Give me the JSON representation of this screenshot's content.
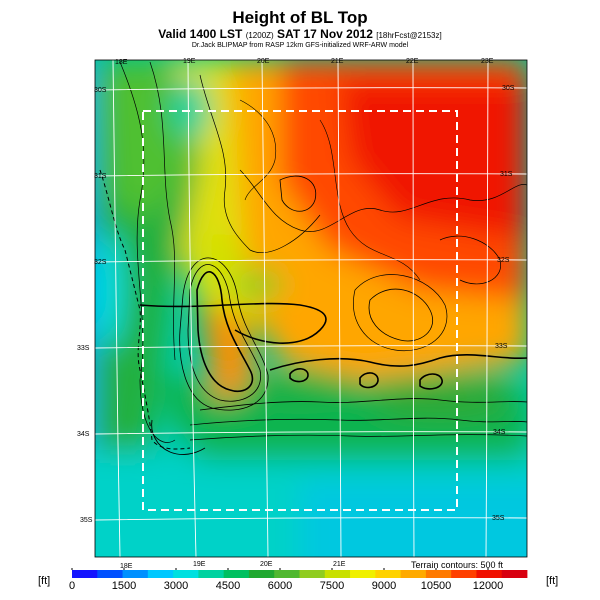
{
  "header": {
    "title": "Height of BL Top",
    "subtitle_main": "Valid 1400 LST",
    "subtitle_code": "(1200Z)",
    "subtitle_date": "SAT 17 Nov 2012",
    "subtitle_fcst": "[18hrFcst@2153z]",
    "credit": "Dr.Jack BLIPMAP from RASP 12km GFS-initialized WRF-ARW model"
  },
  "map": {
    "lon_top": [
      "18E",
      "19E",
      "20E",
      "21E",
      "22E",
      "23E"
    ],
    "lon_bottom": [
      "18E",
      "19E",
      "20E",
      "21E"
    ],
    "lat_left": [
      "30S",
      "31S",
      "32S",
      "33S",
      "34S",
      "35S"
    ],
    "lat_right": [
      "30S",
      "31S",
      "32S",
      "33S",
      "34S",
      "35S"
    ],
    "terrain_note": "Terrain contours: 500 ft"
  },
  "colorbar": {
    "unit_left": "[ft]",
    "unit_right": "[ft]",
    "labels": [
      "0",
      "1500",
      "3000",
      "4500",
      "6000",
      "7500",
      "9000",
      "10500",
      "12000"
    ],
    "colors": [
      "#1414ff",
      "#0050ff",
      "#0090ff",
      "#00c8ff",
      "#00e0e0",
      "#00d2a0",
      "#00c060",
      "#20a830",
      "#50b830",
      "#90cc20",
      "#c8e000",
      "#f0f000",
      "#ffd200",
      "#ffaa00",
      "#ff7a00",
      "#ff4000",
      "#f01000",
      "#d80010"
    ]
  }
}
